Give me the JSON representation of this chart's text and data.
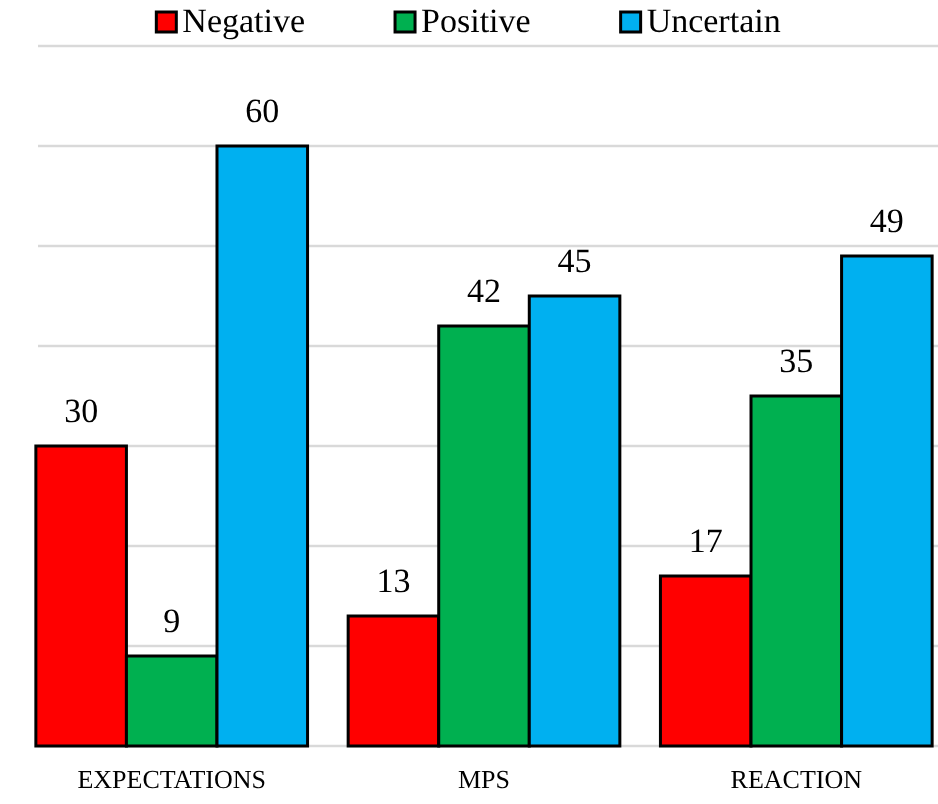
{
  "chart_data": {
    "type": "bar",
    "categories": [
      "EXPECTATIONS",
      "MPS",
      "REACTION"
    ],
    "series": [
      {
        "name": "Negative",
        "color": "#ff0000",
        "values": [
          30,
          13,
          17
        ]
      },
      {
        "name": "Positive",
        "color": "#00b050",
        "values": [
          9,
          42,
          35
        ]
      },
      {
        "name": "Uncertain",
        "color": "#00b0f0",
        "values": [
          60,
          45,
          49
        ]
      }
    ],
    "ylim": [
      0,
      70
    ],
    "yticks": [
      {
        "value": 0,
        "label": null
      },
      {
        "value": 10,
        "label": null
      },
      {
        "value": 20,
        "label": null
      },
      {
        "value": 30,
        "label": null
      },
      {
        "value": 40,
        "label": null
      },
      {
        "value": 50,
        "label": null
      },
      {
        "value": 60,
        "label": null
      },
      {
        "value": 70,
        "label": null
      }
    ],
    "grid": "y",
    "legend": "top",
    "data_labels": true,
    "tick_labels": "x"
  }
}
